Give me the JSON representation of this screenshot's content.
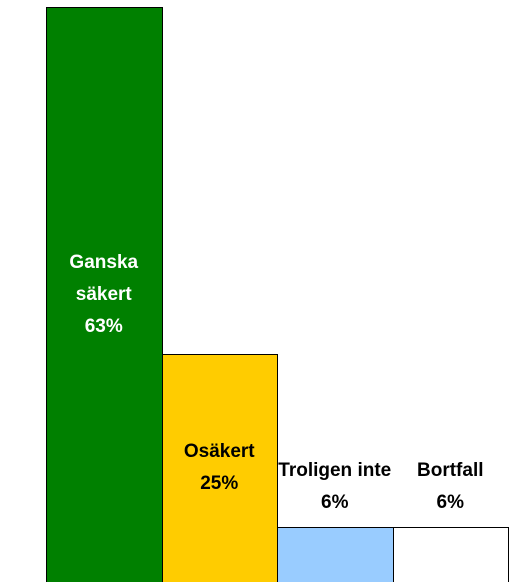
{
  "chart_data": {
    "type": "bar",
    "categories": [
      "Ganska säkert",
      "Osäkert",
      "Troligen inte",
      "Bortfall"
    ],
    "values": [
      63,
      25,
      6,
      6
    ],
    "value_labels": [
      "63%",
      "25%",
      "6%",
      "6%"
    ],
    "colors": [
      "#008000",
      "#ffcc00",
      "#99ccff",
      "#ffffff"
    ]
  }
}
